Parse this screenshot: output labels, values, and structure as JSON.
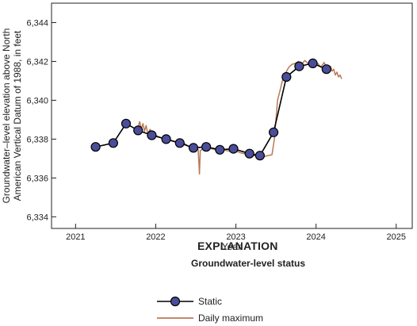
{
  "chart_data": {
    "type": "line",
    "title": "",
    "xlabel": "Year",
    "ylabel_lines": [
      "Groundwater–level elevation above North",
      "American Vertical Datum of 1988, in feet"
    ],
    "xlim": [
      2020.7,
      2025.2
    ],
    "ylim": [
      6333.4,
      6345.0
    ],
    "x_ticks": [
      2021,
      2022,
      2023,
      2024,
      2025
    ],
    "x_tick_labels": [
      "2021",
      "2022",
      "2023",
      "2024",
      "2025"
    ],
    "y_ticks": [
      6334,
      6336,
      6338,
      6340,
      6342,
      6344
    ],
    "y_tick_labels": [
      "6,334",
      "6,336",
      "6,338",
      "6,340",
      "6,342",
      "6,344"
    ],
    "grid": false,
    "series": [
      {
        "name": "Static",
        "style": "line-with-markers",
        "line_color": "#000000",
        "marker_color": "#4a4d9a",
        "x": [
          2021.25,
          2021.47,
          2021.63,
          2021.78,
          2021.95,
          2022.13,
          2022.3,
          2022.47,
          2022.63,
          2022.8,
          2022.97,
          2023.17,
          2023.3,
          2023.47,
          2023.63,
          2023.79,
          2023.96,
          2024.13
        ],
        "y": [
          6337.6,
          6337.8,
          6338.8,
          6338.45,
          6338.2,
          6338.0,
          6337.8,
          6337.55,
          6337.6,
          6337.45,
          6337.5,
          6337.25,
          6337.15,
          6338.35,
          6341.2,
          6341.75,
          6341.9,
          6341.6
        ]
      },
      {
        "name": "Daily maximum",
        "style": "line",
        "line_color": "#b97a57",
        "x": [
          2021.78,
          2021.8,
          2021.82,
          2021.84,
          2021.86,
          2021.88,
          2021.9,
          2021.93,
          2021.96,
          2022.0,
          2022.05,
          2022.1,
          2022.15,
          2022.2,
          2022.25,
          2022.3,
          2022.35,
          2022.4,
          2022.45,
          2022.5,
          2022.53,
          2022.545,
          2022.555,
          2022.57,
          2022.6,
          2022.65,
          2022.7,
          2022.75,
          2022.8,
          2022.85,
          2022.9,
          2022.95,
          2023.0,
          2023.05,
          2023.1,
          2023.15,
          2023.2,
          2023.25,
          2023.3,
          2023.35,
          2023.4,
          2023.45,
          2023.48,
          2023.5,
          2023.52,
          2023.55,
          2023.58,
          2023.62,
          2023.66,
          2023.7,
          2023.74,
          2023.78,
          2023.82,
          2023.86,
          2023.9,
          2023.94,
          2023.98,
          2024.02,
          2024.06,
          2024.1,
          2024.14,
          2024.18,
          2024.2,
          2024.22,
          2024.24,
          2024.26,
          2024.28,
          2024.3,
          2024.32
        ],
        "y": [
          6338.6,
          6338.9,
          6338.5,
          6338.8,
          6338.4,
          6338.7,
          6338.3,
          6338.5,
          6338.3,
          6338.2,
          6338.1,
          6338.0,
          6338.05,
          6337.9,
          6337.85,
          6337.75,
          6337.8,
          6337.65,
          6337.5,
          6337.55,
          6337.45,
          6336.2,
          6337.4,
          6337.45,
          6337.5,
          6337.6,
          6337.5,
          6337.45,
          6337.4,
          6337.45,
          6337.4,
          6337.35,
          6337.4,
          6337.3,
          6337.25,
          6337.2,
          6337.15,
          6337.15,
          6337.15,
          6337.1,
          6337.15,
          6337.2,
          6338.0,
          6339.0,
          6340.0,
          6340.5,
          6341.0,
          6341.4,
          6341.7,
          6341.85,
          6341.9,
          6342.0,
          6341.85,
          6342.05,
          6341.9,
          6342.0,
          6341.8,
          6341.9,
          6341.7,
          6341.95,
          6341.6,
          6341.75,
          6341.5,
          6341.6,
          6341.3,
          6341.45,
          6341.2,
          6341.3,
          6341.1
        ]
      }
    ],
    "legend": {
      "title": "EXPLANATION",
      "subtitle": "Groundwater-level status",
      "placement": "bottom-center",
      "items": [
        "Static",
        "Daily maximum"
      ]
    }
  }
}
